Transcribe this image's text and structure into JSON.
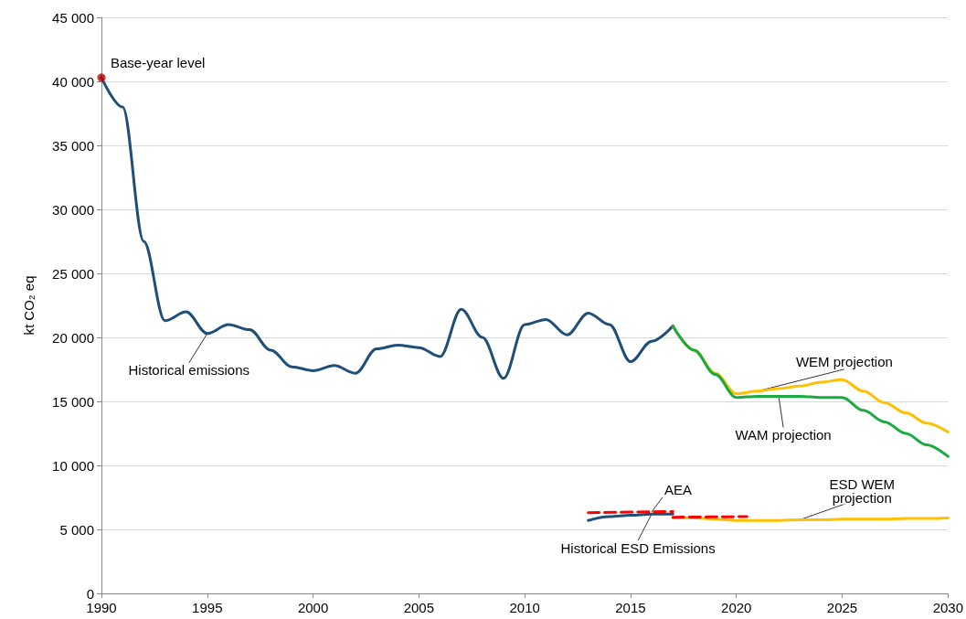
{
  "chart_data": {
    "type": "line",
    "ylabel": "kt CO₂ eq",
    "xlim": [
      1990,
      2030
    ],
    "xticks": [
      1990,
      1995,
      2000,
      2005,
      2010,
      2015,
      2020,
      2025,
      2030
    ],
    "ylim": [
      0,
      45000
    ],
    "yticks": [
      0,
      {
        "value": 5000,
        "label": "5 000"
      },
      {
        "value": 10000,
        "label": "10 000"
      },
      {
        "value": 15000,
        "label": "15 000"
      },
      {
        "value": 20000,
        "label": "20 000"
      },
      {
        "value": 25000,
        "label": "25 000"
      },
      {
        "value": 30000,
        "label": "30 000"
      },
      {
        "value": 35000,
        "label": "35 000"
      },
      {
        "value": 40000,
        "label": "40 000"
      },
      {
        "value": 45000,
        "label": "45 000"
      }
    ],
    "grid": "y",
    "marker": "none",
    "line_style": "solid",
    "series": [
      {
        "color": "#1f4e79",
        "x": [
          1990,
          1991,
          1992,
          1993,
          1994,
          1995,
          1996,
          1997,
          1998,
          1999,
          2000,
          2001,
          2002,
          2003,
          2004,
          2005,
          2006,
          2007,
          2008,
          2009,
          2010,
          2011,
          2012,
          2013,
          2014,
          2015,
          2016,
          2017
        ],
        "values": [
          40300,
          38000,
          27500,
          21300,
          22000,
          20300,
          21000,
          20600,
          19000,
          17700,
          17400,
          17800,
          17200,
          19100,
          19400,
          19200,
          18500,
          22200,
          20000,
          16800,
          21000,
          21400,
          20200,
          21900,
          21000,
          18100,
          19700,
          20900
        ]
      },
      {
        "color": "#ffc000",
        "x": [
          2017,
          2018,
          2019,
          2020,
          2021,
          2022,
          2023,
          2024,
          2025,
          2026,
          2027,
          2028,
          2029,
          2030
        ],
        "values": [
          20900,
          19000,
          17200,
          15600,
          15800,
          16000,
          16200,
          16500,
          16700,
          15800,
          14900,
          14100,
          13300,
          12600
        ]
      },
      {
        "color": "#1aab40",
        "x": [
          2017,
          2018,
          2019,
          2020,
          2021,
          2022,
          2023,
          2024,
          2025,
          2026,
          2027,
          2028,
          2029,
          2030
        ],
        "values": [
          20900,
          19000,
          17100,
          15300,
          15400,
          15400,
          15400,
          15300,
          15300,
          14300,
          13400,
          12500,
          11600,
          10700
        ]
      },
      {
        "color": "#1f4e79",
        "x": [
          2013,
          2014,
          2015,
          2016,
          2017
        ],
        "values": [
          5700,
          6000,
          6100,
          6200,
          6200
        ]
      },
      {
        "color": "#ffc000",
        "x": [
          2017,
          2018,
          2019,
          2020,
          2021,
          2022,
          2023,
          2024,
          2025,
          2026,
          2027,
          2028,
          2029,
          2030
        ],
        "values": [
          5900,
          5900,
          5800,
          5700,
          5700,
          5700,
          5750,
          5750,
          5800,
          5800,
          5800,
          5850,
          5850,
          5900
        ]
      },
      {
        "color": "#ff0000",
        "line_style": "dashed",
        "x": [
          2013,
          2017
        ],
        "values": [
          6300,
          6400
        ]
      },
      {
        "color": "#ff0000",
        "line_style": "dashed",
        "x": [
          2017,
          2020.5
        ],
        "values": [
          5950,
          6000
        ]
      },
      {
        "type": "scatter",
        "marker": "circle",
        "color": "#c00000",
        "x": [
          1990
        ],
        "values": [
          40300
        ]
      }
    ],
    "annotations": [
      {
        "text": "Base-year level",
        "x": 1990,
        "y": 40300
      },
      {
        "text": "Historical emissions",
        "x": 1995,
        "y": 20300
      },
      {
        "text": "WEM projection",
        "x": 2021,
        "y": 15800
      },
      {
        "text": "WAM projection",
        "x": 2022,
        "y": 15400
      },
      {
        "text": "AEA",
        "x": 2016,
        "y": 6375
      },
      {
        "text": "ESD WEM projection",
        "x": 2023,
        "y": 5750
      },
      {
        "text": "Historical ESD Emissions",
        "x": 2016,
        "y": 6200
      }
    ]
  }
}
